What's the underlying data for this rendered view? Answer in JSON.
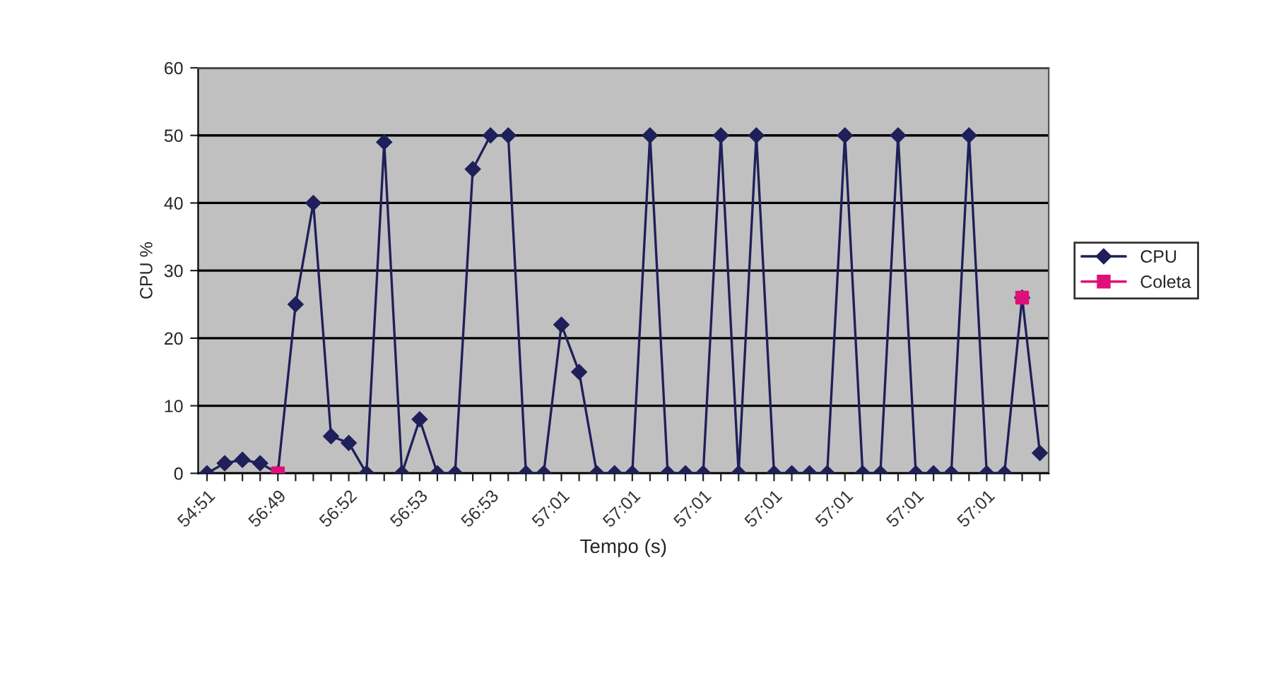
{
  "chart_data": {
    "type": "line",
    "xlabel": "Tempo (s)",
    "ylabel": "CPU %",
    "categories": [
      "54:51",
      null,
      null,
      null,
      "56:49",
      null,
      null,
      null,
      "56:52",
      null,
      null,
      null,
      "56:53",
      null,
      null,
      null,
      "56:53",
      null,
      null,
      null,
      "57:01",
      null,
      null,
      null,
      "57:01",
      null,
      null,
      null,
      "57:01",
      null,
      null,
      null,
      "57:01",
      null,
      null,
      null,
      "57:01",
      null,
      null,
      null,
      "57:01",
      null,
      null,
      null,
      "57:01",
      null,
      null,
      null
    ],
    "series": [
      {
        "name": "CPU",
        "color": "#1f1f5a",
        "marker": "diamond",
        "values": [
          0,
          1.5,
          2,
          1.5,
          0,
          25,
          40,
          5.5,
          4.5,
          0,
          49,
          0,
          8,
          0,
          0,
          45,
          50,
          50,
          0,
          0,
          22,
          15,
          0,
          0,
          0,
          50,
          0,
          0,
          0,
          50,
          0,
          50,
          0,
          0,
          0,
          0,
          50,
          0,
          0,
          50,
          0,
          0,
          0,
          50,
          0,
          0,
          26,
          3
        ]
      },
      {
        "name": "Coleta",
        "type": "scatter",
        "color": "#e0107a",
        "marker": "square",
        "values": [
          null,
          null,
          null,
          null,
          0,
          null,
          null,
          null,
          null,
          null,
          null,
          null,
          null,
          null,
          null,
          null,
          null,
          null,
          null,
          null,
          null,
          null,
          null,
          null,
          null,
          null,
          null,
          null,
          null,
          null,
          null,
          null,
          null,
          null,
          null,
          null,
          null,
          null,
          null,
          null,
          null,
          null,
          null,
          null,
          null,
          null,
          26,
          null
        ]
      }
    ],
    "ylim": [
      0,
      60
    ],
    "yticks": [
      0,
      10,
      20,
      30,
      40,
      50,
      60
    ],
    "grid": "y",
    "legend": "right",
    "line_style": "solid"
  }
}
